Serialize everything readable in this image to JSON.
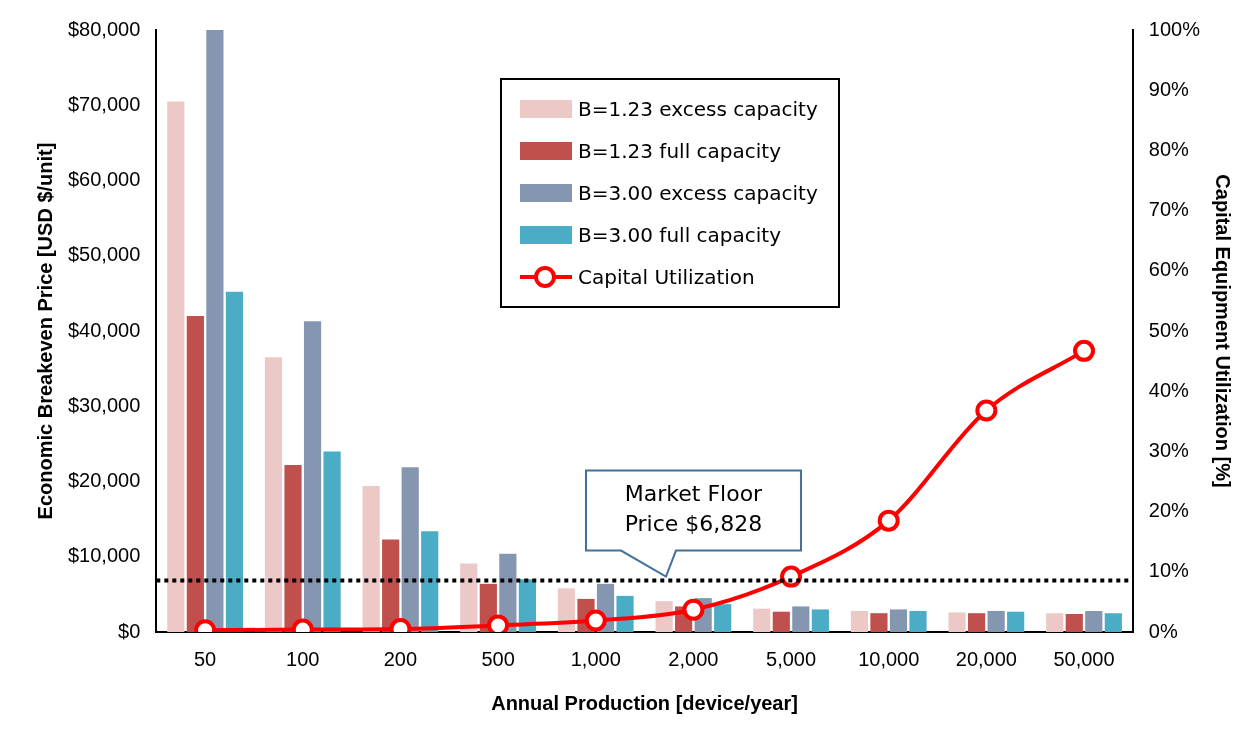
{
  "chart_data": {
    "type": "bar",
    "xlabel": "Annual Production [device/year]",
    "ylabel": "Economic Breakeven Price [USD $/unit]",
    "y2label": "Capital Equipment Utilization [%]",
    "categories": [
      "50",
      "100",
      "200",
      "500",
      "1,000",
      "2,000",
      "5,000",
      "10,000",
      "20,000",
      "50,000"
    ],
    "series": [
      {
        "name": "B=1.23 excess capacity",
        "color": "#ecc8c7",
        "values": [
          70500,
          36500,
          19400,
          9100,
          5800,
          4100,
          3100,
          2800,
          2600,
          2500
        ]
      },
      {
        "name": "B=1.23 full capacity",
        "color": "#c0504d",
        "values": [
          42000,
          22200,
          12300,
          6400,
          4400,
          3400,
          2700,
          2500,
          2500,
          2400
        ]
      },
      {
        "name": "B=3.00 excess capacity",
        "color": "#8496b0",
        "values": [
          80000,
          41300,
          21900,
          10400,
          6400,
          4500,
          3400,
          3000,
          2800,
          2800
        ]
      },
      {
        "name": "B=3.00 full capacity",
        "color": "#4bacc6",
        "values": [
          45200,
          24000,
          13400,
          7000,
          4800,
          3700,
          3000,
          2800,
          2700,
          2500
        ]
      },
      {
        "name": "Capital Utilization",
        "type": "line",
        "axis": "y2",
        "color": "#ff0000",
        "marker": "circle",
        "values": [
          0.3,
          0.4,
          0.5,
          1.1,
          1.9,
          3.7,
          9.2,
          18.5,
          36.8,
          46.7
        ]
      }
    ],
    "ylim": [
      0,
      80000
    ],
    "yticks": [
      {
        "value": 0,
        "label": "$0"
      },
      {
        "value": 10000,
        "label": "$10,000"
      },
      {
        "value": 20000,
        "label": "$20,000"
      },
      {
        "value": 30000,
        "label": "$30,000"
      },
      {
        "value": 40000,
        "label": "$40,000"
      },
      {
        "value": 50000,
        "label": "$50,000"
      },
      {
        "value": 60000,
        "label": "$60,000"
      },
      {
        "value": 70000,
        "label": "$70,000"
      },
      {
        "value": 80000,
        "label": "$80,000"
      }
    ],
    "y2lim": [
      0,
      100
    ],
    "y2ticks": [
      {
        "value": 0,
        "label": "0%"
      },
      {
        "value": 10,
        "label": "10%"
      },
      {
        "value": 20,
        "label": "20%"
      },
      {
        "value": 30,
        "label": "30%"
      },
      {
        "value": 40,
        "label": "40%"
      },
      {
        "value": 50,
        "label": "50%"
      },
      {
        "value": 60,
        "label": "60%"
      },
      {
        "value": 70,
        "label": "70%"
      },
      {
        "value": 80,
        "label": "80%"
      },
      {
        "value": 90,
        "label": "90%"
      },
      {
        "value": 100,
        "label": "100%"
      }
    ],
    "ref_lines": [
      {
        "axis": "y",
        "value": 6828,
        "label": "Market Floor\nPrice $6,828",
        "color": "#000000",
        "line_style": "dotted"
      }
    ],
    "grid": false,
    "legend": "top"
  }
}
